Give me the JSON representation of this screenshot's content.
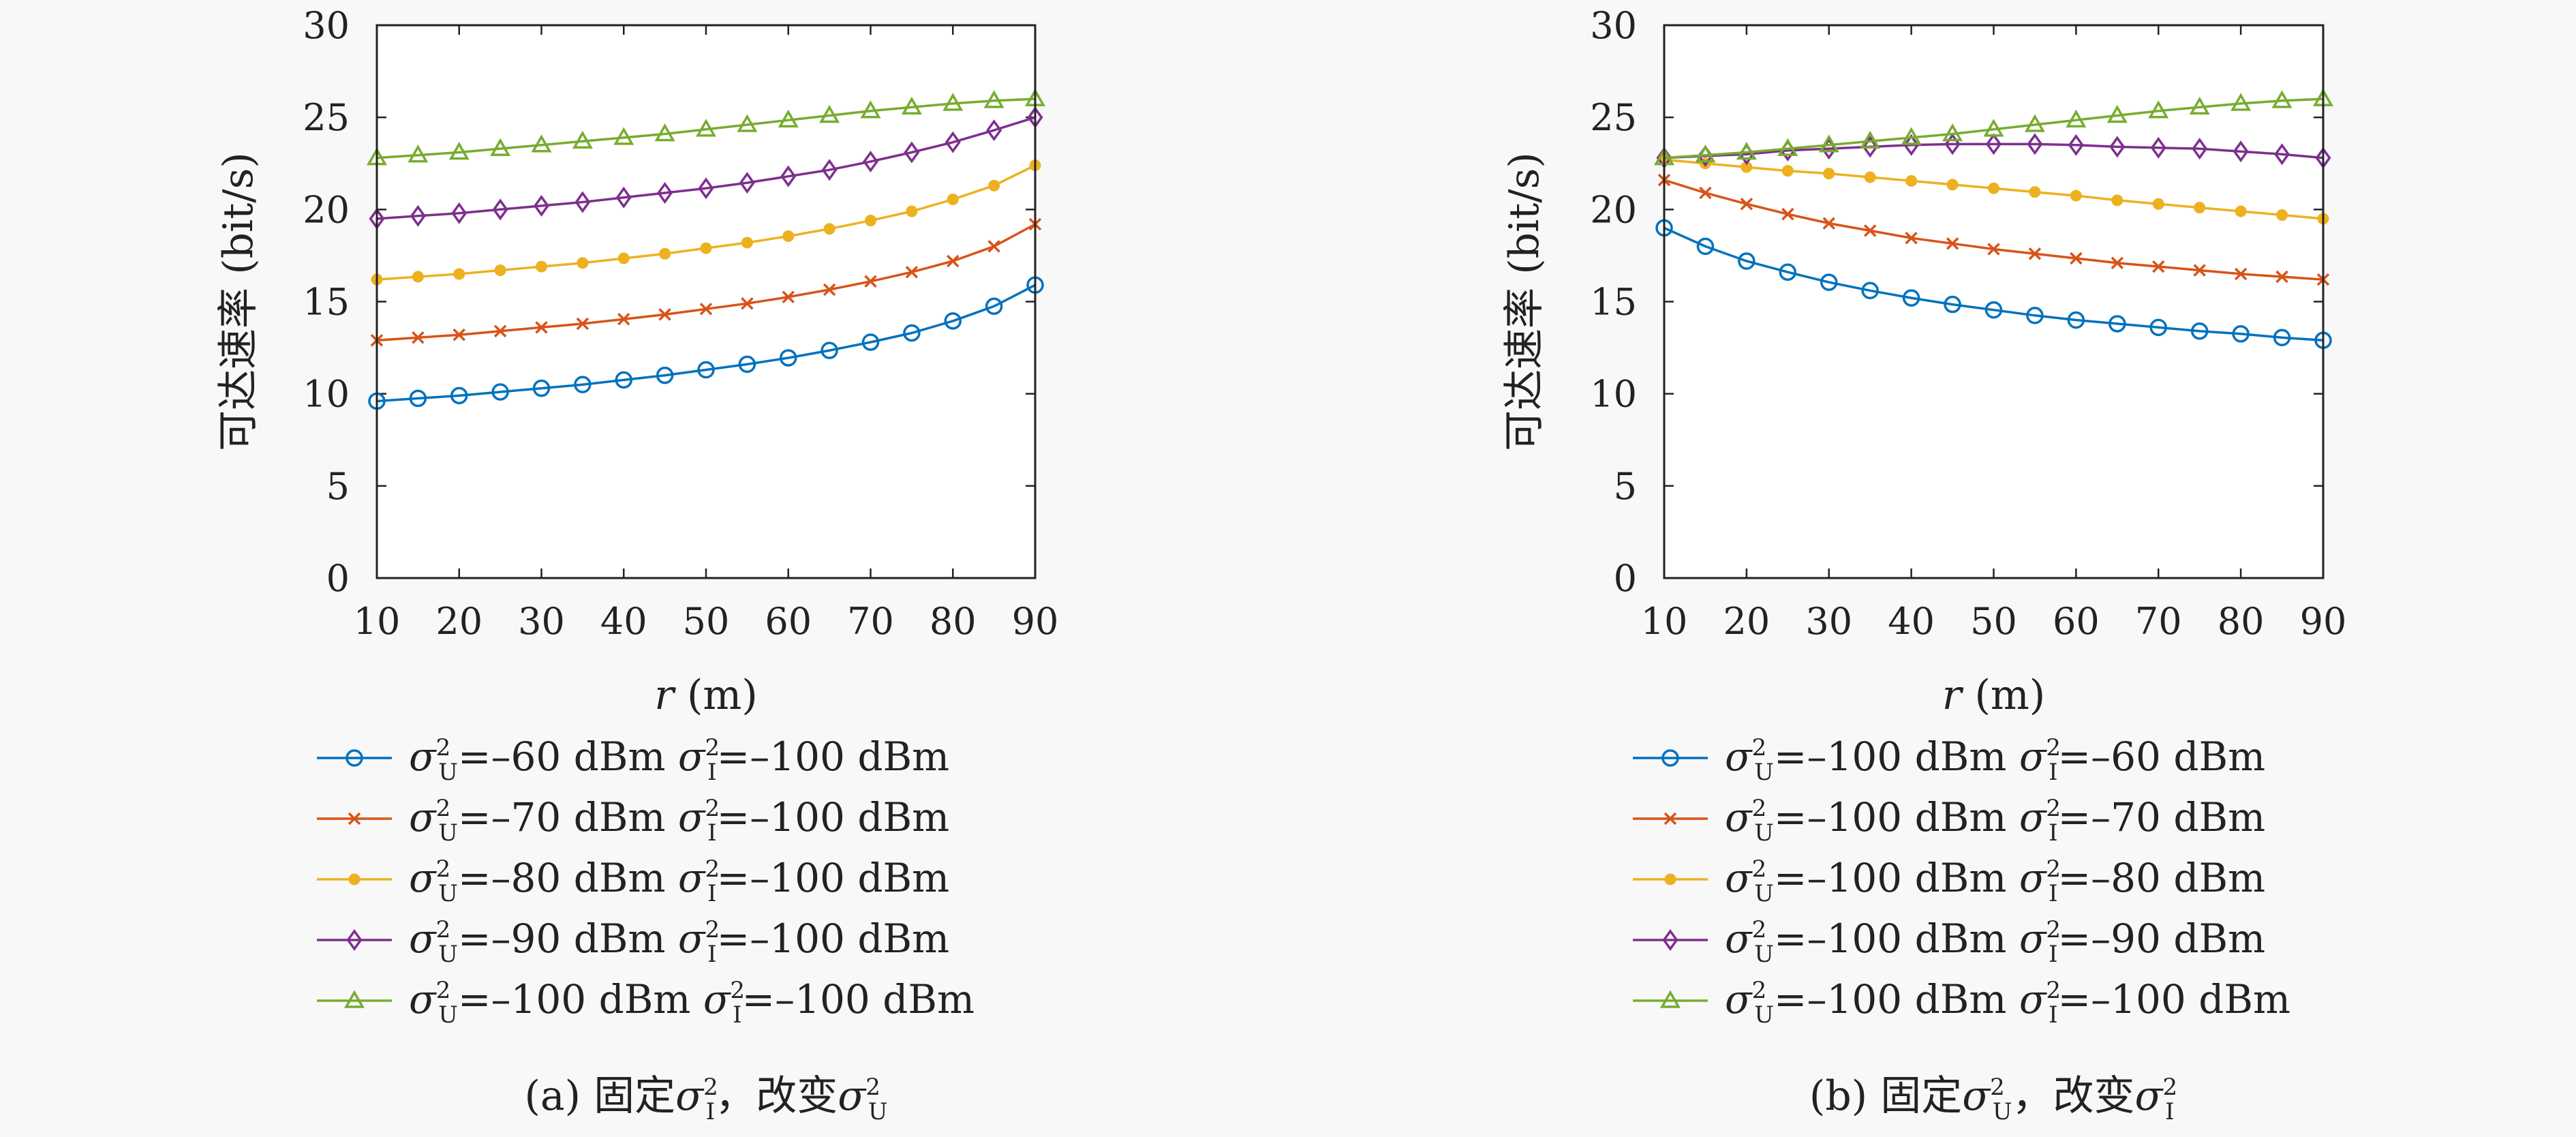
{
  "chart_data": [
    {
      "type": "line",
      "caption_prefix": "(a) 固定",
      "caption_v1": "σ",
      "caption_s1": "I",
      "caption_mid": "，改变",
      "caption_v2": "σ",
      "caption_s2": "U",
      "xlabel_var": "r",
      "xlabel_unit": " (m)",
      "ylabel": "可达速率 (bit/s)",
      "xlim": [
        10,
        90
      ],
      "ylim": [
        0,
        30
      ],
      "xticks": [
        10,
        20,
        30,
        40,
        50,
        60,
        70,
        80,
        90
      ],
      "yticks": [
        0,
        5,
        10,
        15,
        20,
        25,
        30
      ],
      "x": [
        10,
        15,
        20,
        25,
        30,
        35,
        40,
        45,
        50,
        55,
        60,
        65,
        70,
        75,
        80,
        85,
        90
      ],
      "series": [
        {
          "name": "σU²=−60 dBm σI²=−100 dBm",
          "color": "#0072bd",
          "marker": "circle",
          "legend_sym": "σ",
          "legend_s1": "U",
          "legend_v1": "=–60 dBm ",
          "legend_s2": "I",
          "legend_v2": "=–100 dBm",
          "values": [
            9.6,
            9.75,
            9.9,
            10.1,
            10.3,
            10.5,
            10.75,
            11.0,
            11.3,
            11.6,
            11.95,
            12.35,
            12.8,
            13.3,
            13.95,
            14.75,
            15.9
          ]
        },
        {
          "name": "σU²=−70 dBm σI²=−100 dBm",
          "color": "#d95319",
          "marker": "x",
          "legend_sym": "σ",
          "legend_s1": "U",
          "legend_v1": "=–70 dBm ",
          "legend_s2": "I",
          "legend_v2": "=–100 dBm",
          "values": [
            12.9,
            13.05,
            13.2,
            13.4,
            13.6,
            13.8,
            14.05,
            14.3,
            14.6,
            14.9,
            15.25,
            15.65,
            16.1,
            16.6,
            17.2,
            18.0,
            19.2
          ]
        },
        {
          "name": "σU²=−80 dBm σI²=−100 dBm",
          "color": "#edb120",
          "marker": "dot",
          "legend_sym": "σ",
          "legend_s1": "U",
          "legend_v1": "=–80 dBm ",
          "legend_s2": "I",
          "legend_v2": "=–100 dBm",
          "values": [
            16.2,
            16.35,
            16.5,
            16.7,
            16.9,
            17.1,
            17.35,
            17.6,
            17.9,
            18.2,
            18.55,
            18.95,
            19.4,
            19.9,
            20.55,
            21.3,
            22.4
          ]
        },
        {
          "name": "σU²=−90 dBm σI²=−100 dBm",
          "color": "#7e2f8e",
          "marker": "diamond",
          "legend_sym": "σ",
          "legend_s1": "U",
          "legend_v1": "=–90 dBm ",
          "legend_s2": "I",
          "legend_v2": "=–100 dBm",
          "values": [
            19.5,
            19.65,
            19.8,
            20.0,
            20.2,
            20.4,
            20.65,
            20.9,
            21.15,
            21.45,
            21.8,
            22.15,
            22.6,
            23.1,
            23.65,
            24.3,
            25.0
          ]
        },
        {
          "name": "σU²=−100 dBm σI²=−100 dBm",
          "color": "#77ac30",
          "marker": "triangle",
          "legend_sym": "σ",
          "legend_s1": "U",
          "legend_v1": "=–100 dBm ",
          "legend_s2": "I",
          "legend_v2": "=–100 dBm",
          "values": [
            22.8,
            22.95,
            23.1,
            23.3,
            23.5,
            23.7,
            23.9,
            24.1,
            24.35,
            24.6,
            24.85,
            25.1,
            25.35,
            25.55,
            25.75,
            25.9,
            26.0
          ]
        }
      ]
    },
    {
      "type": "line",
      "caption_prefix": "(b) 固定",
      "caption_v1": "σ",
      "caption_s1": "U",
      "caption_mid": "，改变",
      "caption_v2": "σ",
      "caption_s2": "I",
      "xlabel_var": "r",
      "xlabel_unit": " (m)",
      "ylabel": "可达速率 (bit/s)",
      "xlim": [
        10,
        90
      ],
      "ylim": [
        0,
        30
      ],
      "xticks": [
        10,
        20,
        30,
        40,
        50,
        60,
        70,
        80,
        90
      ],
      "yticks": [
        0,
        5,
        10,
        15,
        20,
        25,
        30
      ],
      "x": [
        10,
        15,
        20,
        25,
        30,
        35,
        40,
        45,
        50,
        55,
        60,
        65,
        70,
        75,
        80,
        85,
        90
      ],
      "series": [
        {
          "name": "σU²=−100 dBm σI²=−60 dBm",
          "color": "#0072bd",
          "marker": "circle",
          "legend_sym": "σ",
          "legend_s1": "U",
          "legend_v1": "=–100 dBm ",
          "legend_s2": "I",
          "legend_v2": "=–60 dBm",
          "values": [
            19.0,
            18.0,
            17.2,
            16.6,
            16.05,
            15.6,
            15.2,
            14.85,
            14.55,
            14.25,
            14.0,
            13.8,
            13.6,
            13.4,
            13.25,
            13.05,
            12.9
          ]
        },
        {
          "name": "σU²=−100 dBm σI²=−70 dBm",
          "color": "#d95319",
          "marker": "x",
          "legend_sym": "σ",
          "legend_s1": "U",
          "legend_v1": "=–100 dBm ",
          "legend_s2": "I",
          "legend_v2": "=–70 dBm",
          "values": [
            21.6,
            20.9,
            20.3,
            19.75,
            19.25,
            18.85,
            18.45,
            18.15,
            17.85,
            17.6,
            17.35,
            17.1,
            16.9,
            16.7,
            16.5,
            16.35,
            16.2
          ]
        },
        {
          "name": "σU²=−100 dBm σI²=−80 dBm",
          "color": "#edb120",
          "marker": "dot",
          "legend_sym": "σ",
          "legend_s1": "U",
          "legend_v1": "=–100 dBm ",
          "legend_s2": "I",
          "legend_v2": "=–80 dBm",
          "values": [
            22.7,
            22.5,
            22.3,
            22.1,
            21.95,
            21.75,
            21.55,
            21.35,
            21.15,
            20.95,
            20.75,
            20.5,
            20.3,
            20.1,
            19.9,
            19.7,
            19.5
          ]
        },
        {
          "name": "σU²=−100 dBm σI²=−90 dBm",
          "color": "#7e2f8e",
          "marker": "diamond",
          "legend_sym": "σ",
          "legend_s1": "U",
          "legend_v1": "=–100 dBm ",
          "legend_s2": "I",
          "legend_v2": "=–90 dBm",
          "values": [
            22.8,
            22.9,
            23.0,
            23.2,
            23.3,
            23.4,
            23.5,
            23.55,
            23.55,
            23.55,
            23.5,
            23.4,
            23.35,
            23.3,
            23.15,
            23.0,
            22.8
          ]
        },
        {
          "name": "σU²=−100 dBm σI²=−100 dBm",
          "color": "#77ac30",
          "marker": "triangle",
          "legend_sym": "σ",
          "legend_s1": "U",
          "legend_v1": "=–100 dBm ",
          "legend_s2": "I",
          "legend_v2": "=–100 dBm",
          "values": [
            22.8,
            22.95,
            23.1,
            23.3,
            23.5,
            23.7,
            23.9,
            24.1,
            24.35,
            24.6,
            24.85,
            25.1,
            25.35,
            25.55,
            25.75,
            25.9,
            26.0
          ]
        }
      ]
    }
  ]
}
